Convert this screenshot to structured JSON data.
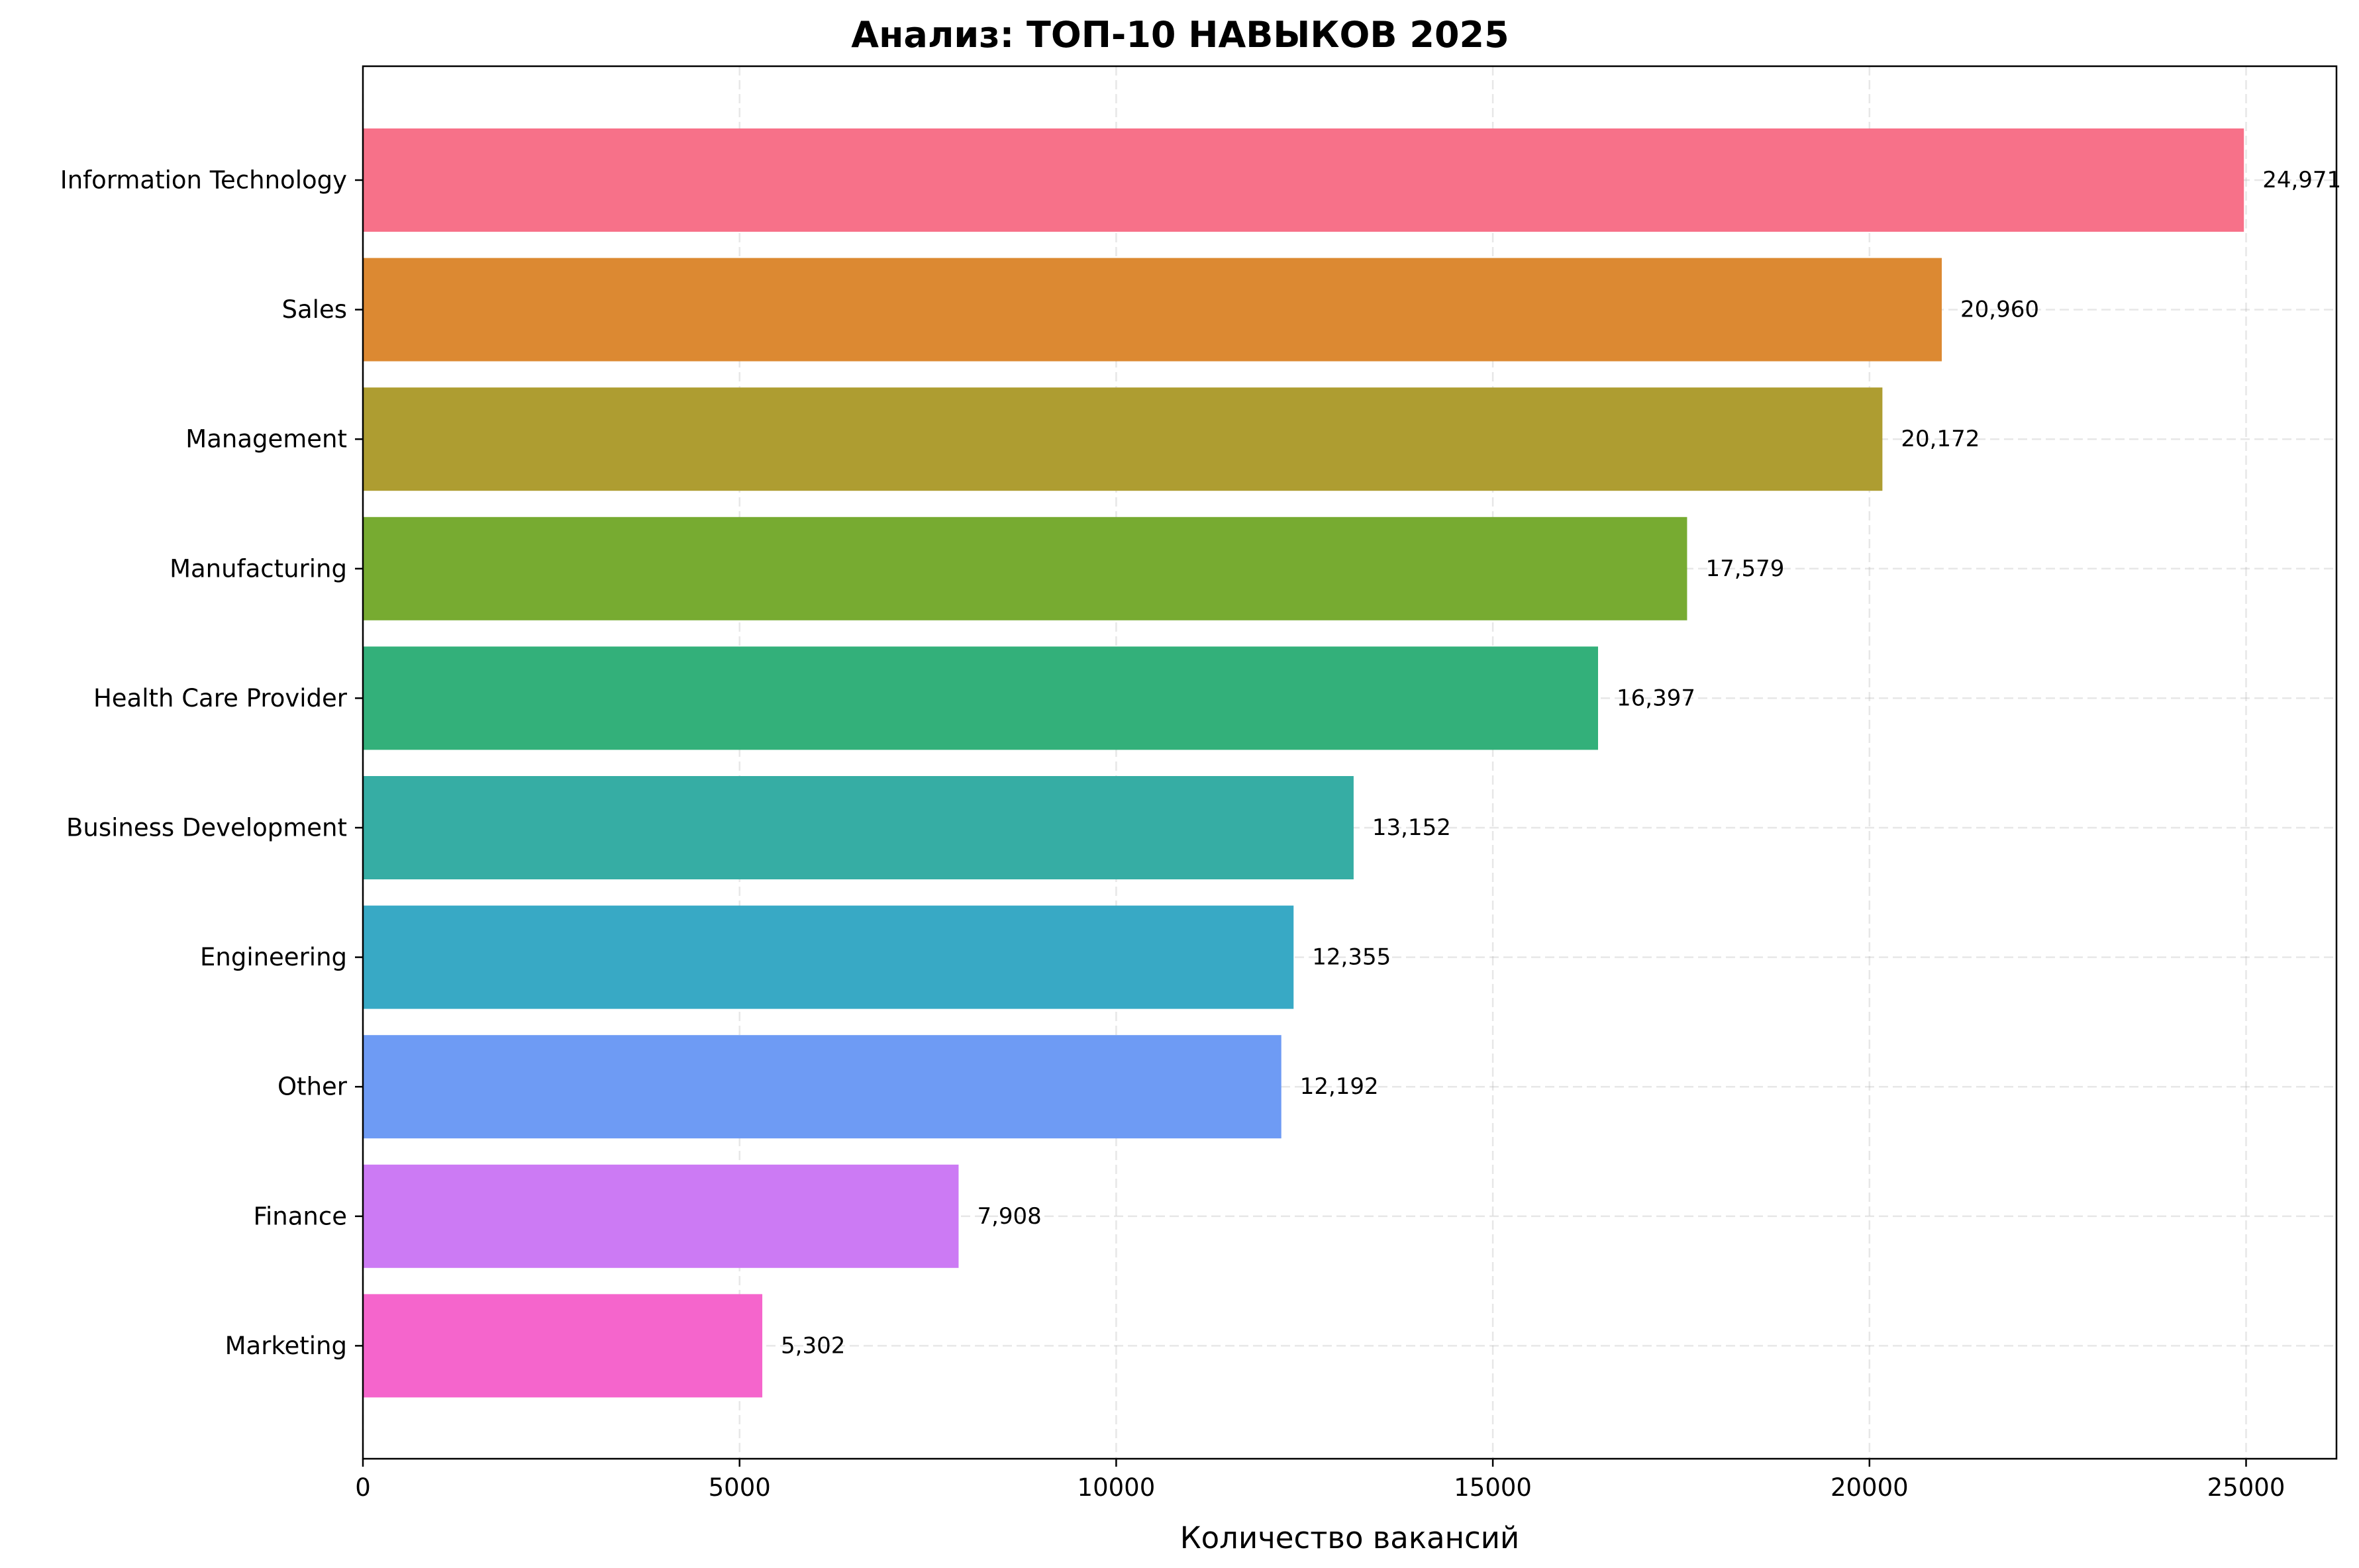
{
  "chart_data": {
    "type": "bar",
    "orientation": "horizontal",
    "title": "Анализ: ТОП-10 НАВЫКОВ 2025",
    "xlabel": "Количество вакансий",
    "ylabel": "",
    "xlim": [
      0,
      26200
    ],
    "xticks": [
      0,
      5000,
      10000,
      15000,
      20000,
      25000
    ],
    "xtick_labels": [
      "0",
      "5000",
      "10000",
      "15000",
      "20000",
      "25000"
    ],
    "grid": true,
    "categories": [
      "Information Technology",
      "Sales",
      "Management",
      "Manufacturing",
      "Health Care Provider",
      "Business Development",
      "Engineering",
      "Other",
      "Finance",
      "Marketing"
    ],
    "values": [
      24971,
      20960,
      20172,
      17579,
      16397,
      13152,
      12355,
      12192,
      7908,
      5302
    ],
    "value_labels": [
      "24,971",
      "20,960",
      "20,172",
      "17,579",
      "16,397",
      "13,152",
      "12,355",
      "12,192",
      "7,908",
      "5,302"
    ],
    "colors": [
      "#f77189",
      "#dc8932",
      "#ae9d31",
      "#77ab31",
      "#33b07a",
      "#36ada4",
      "#38a9c5",
      "#6e9bf4",
      "#cc7af4",
      "#f565cc"
    ]
  }
}
